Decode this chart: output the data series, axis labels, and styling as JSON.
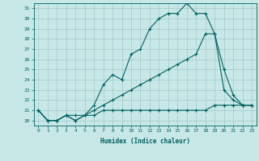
{
  "xlabel": "Humidex (Indice chaleur)",
  "bg_color": "#c8e8e8",
  "line_color": "#006060",
  "grid_color": "#a0c8c8",
  "xlim": [
    -0.5,
    23.5
  ],
  "ylim": [
    19.5,
    31.5
  ],
  "xticks": [
    0,
    1,
    2,
    3,
    4,
    5,
    6,
    7,
    8,
    9,
    10,
    11,
    12,
    13,
    14,
    15,
    16,
    17,
    18,
    19,
    20,
    21,
    22,
    23
  ],
  "yticks": [
    20,
    21,
    22,
    23,
    24,
    25,
    26,
    27,
    28,
    29,
    30,
    31
  ],
  "line1_x": [
    0,
    1,
    2,
    3,
    4,
    5,
    6,
    7,
    8,
    9,
    10,
    11,
    12,
    13,
    14,
    15,
    16,
    17,
    18,
    19,
    20,
    21,
    22,
    23
  ],
  "line1_y": [
    21.0,
    20.0,
    20.0,
    20.5,
    20.0,
    20.5,
    20.5,
    21.0,
    21.0,
    21.0,
    21.0,
    21.0,
    21.0,
    21.0,
    21.0,
    21.0,
    21.0,
    21.0,
    21.0,
    21.5,
    21.5,
    21.5,
    21.5,
    21.5
  ],
  "line2_x": [
    0,
    1,
    2,
    3,
    4,
    5,
    6,
    7,
    8,
    9,
    10,
    11,
    12,
    13,
    14,
    15,
    16,
    17,
    18,
    19,
    20,
    21,
    22,
    23
  ],
  "line2_y": [
    21.0,
    20.0,
    20.0,
    20.5,
    20.5,
    20.5,
    21.0,
    21.5,
    22.0,
    22.5,
    23.0,
    23.5,
    24.0,
    24.5,
    25.0,
    25.5,
    26.0,
    26.5,
    28.5,
    28.5,
    25.0,
    22.5,
    21.5,
    21.5
  ],
  "line3_x": [
    0,
    1,
    2,
    3,
    4,
    5,
    6,
    7,
    8,
    9,
    10,
    11,
    12,
    13,
    14,
    15,
    16,
    17,
    18,
    19,
    20,
    21,
    22,
    23
  ],
  "line3_y": [
    21.0,
    20.0,
    20.0,
    20.5,
    20.0,
    20.5,
    21.5,
    23.5,
    24.5,
    24.0,
    26.5,
    27.0,
    29.0,
    30.0,
    30.5,
    30.5,
    31.5,
    30.5,
    30.5,
    28.5,
    23.0,
    22.0,
    21.5,
    21.5
  ]
}
